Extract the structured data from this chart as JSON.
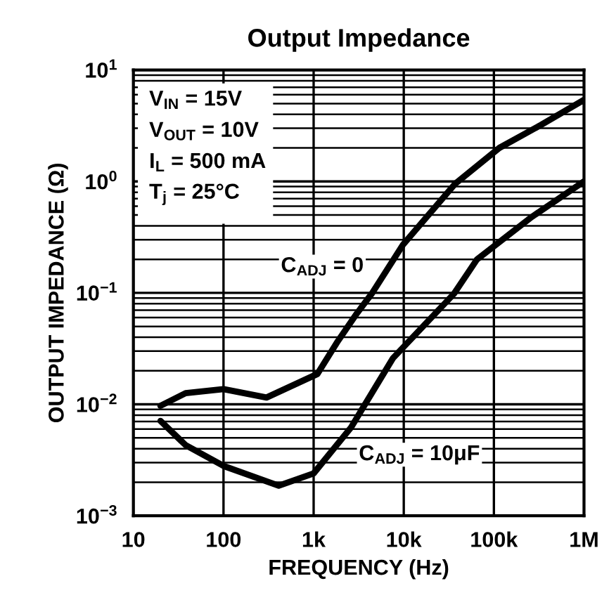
{
  "chart_data": {
    "type": "line",
    "title": "Output Impedance",
    "xlabel": "FREQUENCY (Hz)",
    "ylabel": "OUTPUT IMPEDANCE (Ω)",
    "log": "xy",
    "grid": true,
    "marker": "none",
    "line_style": "solid",
    "xlim": [
      10,
      1000000
    ],
    "ylim": [
      0.001,
      10
    ],
    "xticks": [
      10,
      100,
      {
        "value": 1000,
        "label": "1k"
      },
      {
        "value": 10000,
        "label": "10k"
      },
      {
        "value": 100000,
        "label": "100k"
      },
      {
        "value": 1000000,
        "label": "1M"
      }
    ],
    "yticks": [
      {
        "value": 0.001,
        "label": "10$^{−3}$"
      },
      {
        "value": 0.01,
        "label": "10$^{−2}$"
      },
      {
        "value": 0.1,
        "label": "10$^{−1}$"
      },
      {
        "value": 1,
        "label": "10$^{0}$"
      },
      {
        "value": 10,
        "label": "10$^{1}$"
      }
    ],
    "annotations": [
      "V$_{IN}$ = 15V",
      "V$_{OUT}$ = 10V",
      "I$_{L}$ = 500 mA",
      "T$_{j}$ = 25°C"
    ],
    "series": [
      {
        "name": "C$_{ADJ}$ = 0",
        "color": "#000000",
        "x": [
          20,
          38,
          100,
          300,
          1100,
          1860,
          3000,
          4400,
          9800,
          37000,
          115000,
          330000,
          1000000
        ],
        "values": [
          0.0097,
          0.0126,
          0.0137,
          0.0115,
          0.0187,
          0.037,
          0.065,
          0.098,
          0.27,
          0.95,
          2.0,
          3.2,
          5.4
        ]
      },
      {
        "name": "C$_{ADJ}$ = 10μF",
        "color": "#000000",
        "x": [
          20,
          38,
          100,
          410,
          1000,
          2600,
          7600,
          36000,
          65000,
          263000,
          1000000
        ],
        "values": [
          0.0071,
          0.0043,
          0.0028,
          0.00186,
          0.0024,
          0.0062,
          0.026,
          0.098,
          0.2,
          0.48,
          1.0
        ]
      }
    ]
  }
}
